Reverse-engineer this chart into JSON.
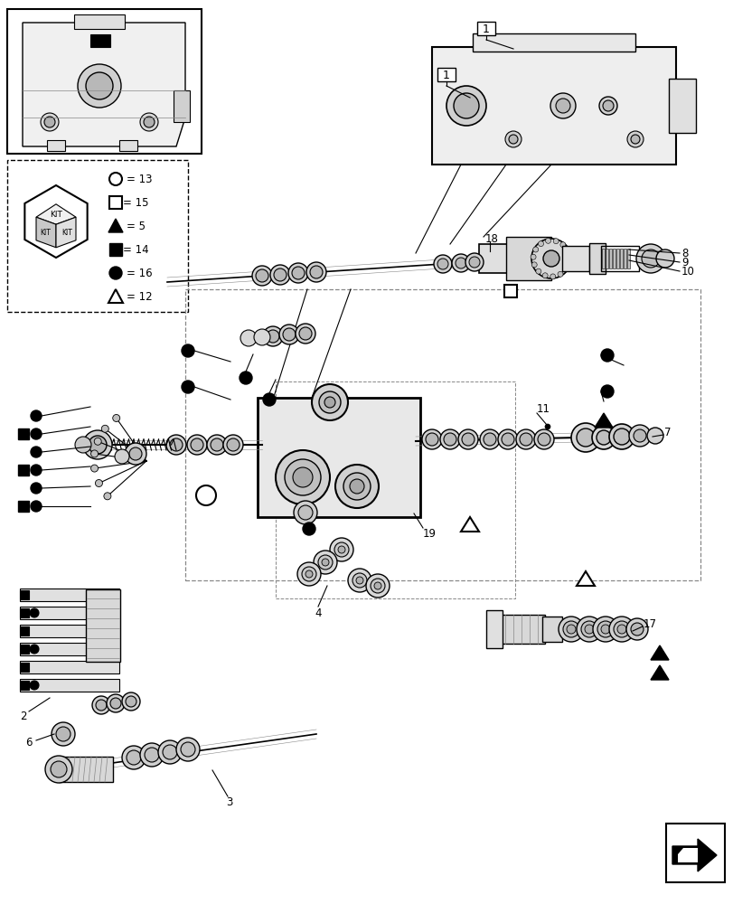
{
  "bg_color": "#ffffff",
  "line_color": "#000000",
  "light_gray": "#aaaaaa",
  "mid_gray": "#888888",
  "dark_gray": "#555555",
  "kit_legend": {
    "circle_open": "13",
    "square_open": "15",
    "triangle_filled": "5",
    "square_filled": "14",
    "circle_filled": "16",
    "triangle_open": "12"
  }
}
